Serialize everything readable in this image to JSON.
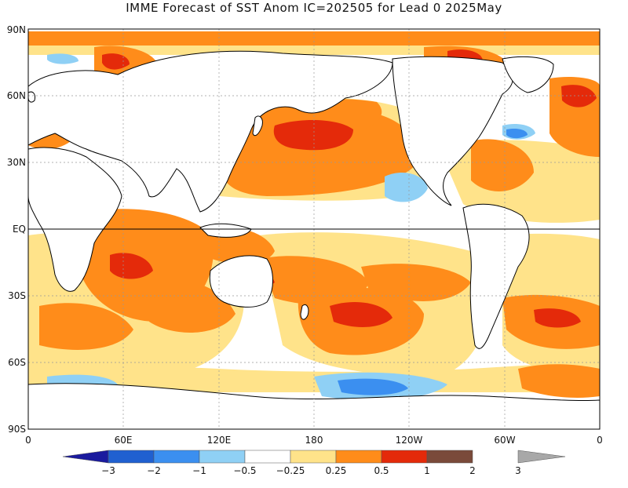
{
  "title": "IMME Forecast of SST Anom IC=202505 for Lead 0 2025May",
  "latitude_labels": [
    "90N",
    "60N",
    "30N",
    "EQ",
    "30S",
    "60S",
    "90S"
  ],
  "longitude_labels": [
    "0",
    "60E",
    "120E",
    "180",
    "120W",
    "60W",
    "0"
  ],
  "colorbar": {
    "tick_labels": [
      "−3",
      "−2",
      "−1",
      "−0.5",
      "−0.25",
      "0.25",
      "0.5",
      "1",
      "2",
      "3"
    ],
    "colors": [
      "#1a1a9e",
      "#2060d0",
      "#3b8ff0",
      "#8fd0f5",
      "#ffffff",
      "#ffe38a",
      "#ff8c1a",
      "#e42a0a",
      "#7a4a3a",
      "#a8a8a8"
    ]
  },
  "palette": {
    "land": "#ffffff",
    "coast": "#000000",
    "ocean_neutral": "#ffffff",
    "light_pos": "#ffe38a",
    "med_pos": "#ff8c1a",
    "strong_pos": "#e42a0a",
    "light_neg": "#8fd0f5",
    "med_neg": "#3b8ff0"
  }
}
